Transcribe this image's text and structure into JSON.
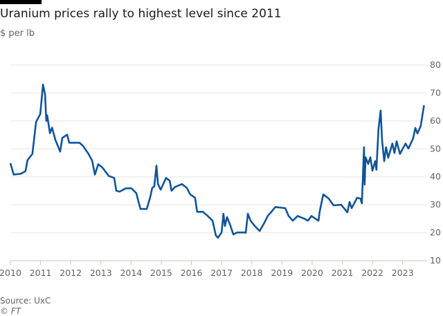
{
  "header": {
    "title": "Uranium prices rally to highest level since 2011",
    "subtitle": "$ per lb"
  },
  "footer": {
    "source": "Source: UxC",
    "copyright": "© FT"
  },
  "colors": {
    "line": "#0f5499",
    "grid": "#ede5de",
    "text": "#66605c"
  },
  "chart_data": {
    "type": "line",
    "title": "Uranium prices rally to highest level since 2011",
    "ylabel": "$ per lb",
    "xlim": [
      2010,
      2023.81
    ],
    "ylim": [
      10,
      80
    ],
    "y_ticks": [
      10,
      20,
      30,
      40,
      50,
      60,
      70,
      80
    ],
    "x_ticks": [
      2010,
      2011,
      2012,
      2013,
      2014,
      2015,
      2016,
      2017,
      2018,
      2019,
      2020,
      2021,
      2022,
      2023
    ],
    "y_axis_position": "right",
    "grid": true,
    "series": [
      {
        "x": [
          2010.0,
          2010.11,
          2010.34,
          2010.5,
          2010.57,
          2010.73,
          2010.85,
          2010.99,
          2011.08,
          2011.15,
          2011.19,
          2011.22,
          2011.31,
          2011.38,
          2011.49,
          2011.65,
          2011.72,
          2011.88,
          2011.95,
          2012.29,
          2012.41,
          2012.59,
          2012.71,
          2012.8,
          2012.91,
          2013.05,
          2013.26,
          2013.44,
          2013.51,
          2013.62,
          2013.83,
          2014.01,
          2014.17,
          2014.31,
          2014.52,
          2014.63,
          2014.7,
          2014.77,
          2014.84,
          2014.89,
          2014.98,
          2015.16,
          2015.28,
          2015.34,
          2015.46,
          2015.69,
          2015.85,
          2015.96,
          2016.12,
          2016.19,
          2016.38,
          2016.54,
          2016.7,
          2016.81,
          2016.88,
          2017.0,
          2017.06,
          2017.11,
          2017.18,
          2017.29,
          2017.39,
          2017.52,
          2017.75,
          2017.8,
          2017.87,
          2017.96,
          2018.1,
          2018.26,
          2018.42,
          2018.53,
          2018.65,
          2018.78,
          2019.11,
          2019.22,
          2019.36,
          2019.52,
          2019.75,
          2019.86,
          2019.98,
          2020.14,
          2020.21,
          2020.25,
          2020.37,
          2020.55,
          2020.71,
          2020.96,
          2021.17,
          2021.24,
          2021.31,
          2021.49,
          2021.6,
          2021.65,
          2021.72,
          2021.74,
          2021.77,
          2021.86,
          2021.93,
          2022.0,
          2022.09,
          2022.13,
          2022.2,
          2022.27,
          2022.32,
          2022.39,
          2022.45,
          2022.52,
          2022.66,
          2022.73,
          2022.8,
          2022.91,
          2023.03,
          2023.1,
          2023.19,
          2023.35,
          2023.42,
          2023.49,
          2023.6,
          2023.71
        ],
        "y": [
          44.9,
          40.8,
          41.1,
          42,
          46,
          48.2,
          59.6,
          62.5,
          73,
          69.4,
          60,
          62,
          55.6,
          57.6,
          53.2,
          49,
          53.9,
          55.1,
          52.2,
          52.2,
          51,
          48.2,
          45.8,
          40.8,
          44.5,
          43.3,
          40.3,
          39.6,
          35,
          34.7,
          35.9,
          35.9,
          34.2,
          28.5,
          28.5,
          32.5,
          36,
          36.6,
          44,
          37.4,
          35.4,
          39.6,
          38.6,
          35,
          36.4,
          37.4,
          36,
          33.7,
          32.5,
          27.5,
          27.5,
          26,
          24.3,
          19,
          18.2,
          20.1,
          26.8,
          22.4,
          25.6,
          22.6,
          19.4,
          20.1,
          20.1,
          20,
          26.8,
          24.3,
          22.4,
          20.6,
          23.6,
          26,
          27.5,
          29.2,
          28.8,
          26,
          24.3,
          26,
          25,
          24.3,
          26,
          24.8,
          24.3,
          27.5,
          33.7,
          32.2,
          29.8,
          30,
          27.3,
          31,
          28.8,
          32.5,
          32.2,
          30.5,
          50.6,
          37.2,
          47,
          44.6,
          47,
          42.2,
          45.6,
          42.5,
          57.1,
          63.7,
          53,
          45.6,
          50.6,
          46.8,
          51.9,
          48.5,
          52.7,
          48.2,
          50.6,
          51.9,
          50.1,
          53.8,
          57.5,
          55.5,
          58.2,
          65.6
        ]
      }
    ]
  }
}
